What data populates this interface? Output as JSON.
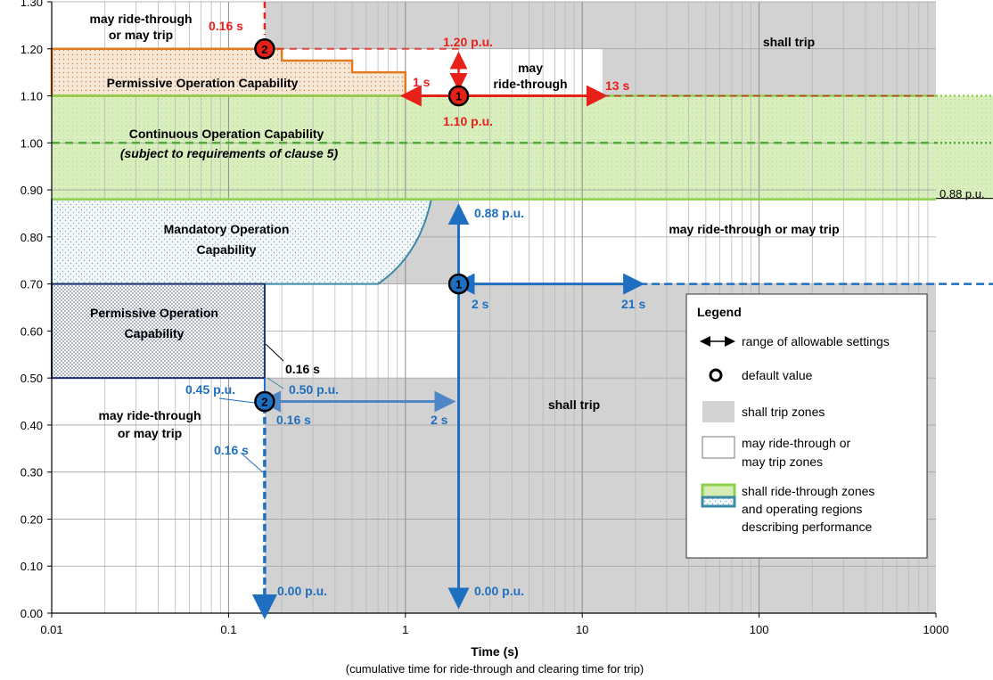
{
  "chart_data": {
    "type": "line",
    "xscale": "log",
    "xlim": [
      0.01,
      1000
    ],
    "ylim": [
      0.0,
      1.3
    ],
    "grid": true,
    "x_ticks": [
      {
        "v": 0.01,
        "label": "0.01"
      },
      {
        "v": 0.1,
        "label": "0.1"
      },
      {
        "v": 1,
        "label": "1"
      },
      {
        "v": 10,
        "label": "10"
      },
      {
        "v": 100,
        "label": "100"
      },
      {
        "v": 1000,
        "label": "1000"
      }
    ],
    "y_ticks": [
      {
        "v": 0.0,
        "label": "0.00"
      },
      {
        "v": 0.1,
        "label": "0.10"
      },
      {
        "v": 0.2,
        "label": "0.20"
      },
      {
        "v": 0.3,
        "label": "0.30"
      },
      {
        "v": 0.4,
        "label": "0.40"
      },
      {
        "v": 0.5,
        "label": "0.50"
      },
      {
        "v": 0.6,
        "label": "0.60"
      },
      {
        "v": 0.7,
        "label": "0.70"
      },
      {
        "v": 0.8,
        "label": "0.80"
      },
      {
        "v": 0.9,
        "label": "0.90"
      },
      {
        "v": 1.0,
        "label": "1.00"
      },
      {
        "v": 1.1,
        "label": "1.10"
      },
      {
        "v": 1.2,
        "label": "1.20"
      },
      {
        "v": 1.3,
        "label": "1.30"
      }
    ],
    "xlabel": "Time (s)",
    "xlabel_sub": "(cumulative time for ride-through and clearing time for trip)",
    "ylabel": "",
    "zones": {
      "shall_trip_overvoltage": {
        "x": [
          0.16,
          1000
        ],
        "y": [
          1.1,
          1.3
        ],
        "color": "#d2d2d2"
      },
      "shall_trip_undervoltage": {
        "x": [
          0.16,
          1000
        ],
        "y": [
          0.0,
          0.88
        ],
        "color": "#d2d2d2"
      },
      "continuous_band": {
        "x": [
          0.01,
          1000
        ],
        "y": [
          0.88,
          1.1
        ],
        "color": "#d5ecb4"
      },
      "may_ride_through_upper": {
        "x_from": 1,
        "x_to": 13,
        "y": [
          1.1,
          1.2
        ]
      },
      "may_ride_through_lower": {
        "x_from": 2,
        "x_to": 21,
        "y": [
          0.7,
          0.88
        ]
      }
    },
    "upper_profile": [
      [
        0.01,
        1.2
      ],
      [
        0.2,
        1.2
      ],
      [
        0.2,
        1.175
      ],
      [
        0.5,
        1.175
      ],
      [
        0.5,
        1.15
      ],
      [
        1.0,
        1.15
      ],
      [
        1.0,
        1.1
      ]
    ],
    "mandatory_region": [
      [
        0.01,
        0.7
      ],
      [
        0.7,
        0.7
      ],
      [
        1.4,
        0.88
      ],
      [
        0.01,
        0.88
      ]
    ],
    "permissive_lower": {
      "x": [
        0.01,
        0.16
      ],
      "y": [
        0.5,
        0.7
      ]
    },
    "settings": {
      "ov1_default": [
        2,
        1.1
      ],
      "ov2_default": [
        0.16,
        1.2
      ],
      "uv1_default": [
        2,
        0.7
      ],
      "uv2_default": [
        0.16,
        0.45
      ]
    },
    "regions": {
      "shall_trip_top": "shall trip",
      "shall_trip_mid": "shall trip",
      "may_upper_left": "may ride-through\nor may trip",
      "may_upper_mid": "may\nride-through",
      "permissive_upper": "Permissive Operation Capability",
      "continuous": "Continuous Operation Capability",
      "continuous_note": "(subject to requirements of clause 5)",
      "mandatory": "Mandatory Operation\nCapability",
      "permissive_lower": "Permissive Operation\nCapability",
      "may_right": "may ride-through or may trip",
      "may_lower_left": "may ride-through\nor may trip"
    },
    "annotations": {
      "t016_top": "0.16 s",
      "p120": "1.20 p.u.",
      "p110": "1.10 p.u.",
      "s1": "1 s",
      "s13": "13 s",
      "p088_right": "0.88 p.u.",
      "p088": "0.88 p.u.",
      "s2_mid": "2 s",
      "s21": "21 s",
      "t016_black": "0.16 s",
      "p045": "0.45 p.u.",
      "p050": "0.50 p.u.",
      "t016_blue": "0.16 s",
      "s2_low": "2 s",
      "t016_vert": "0.16 s",
      "p000_left": "0.00 p.u.",
      "p000_right": "0.00 p.u."
    },
    "markers": {
      "m1": "1",
      "m2": "2"
    },
    "legend": {
      "title": "Legend",
      "items": [
        "range of allowable settings",
        "default value",
        "shall trip zones",
        "may ride-through or\nmay trip zones",
        "shall ride-through zones\nand operating regions\ndescribing performance"
      ]
    }
  },
  "colors": {
    "red": "#e8201a",
    "dark_red": "#c0392b",
    "blue": "#1f6fc1",
    "light_blue": "#4f87c6",
    "orange": "#e07b24",
    "teal": "#3c8aa6",
    "navy": "#1b2f6e",
    "green": "#4fae3a",
    "light_green": "#8dd04a",
    "grey_zone": "#d2d2d2"
  }
}
